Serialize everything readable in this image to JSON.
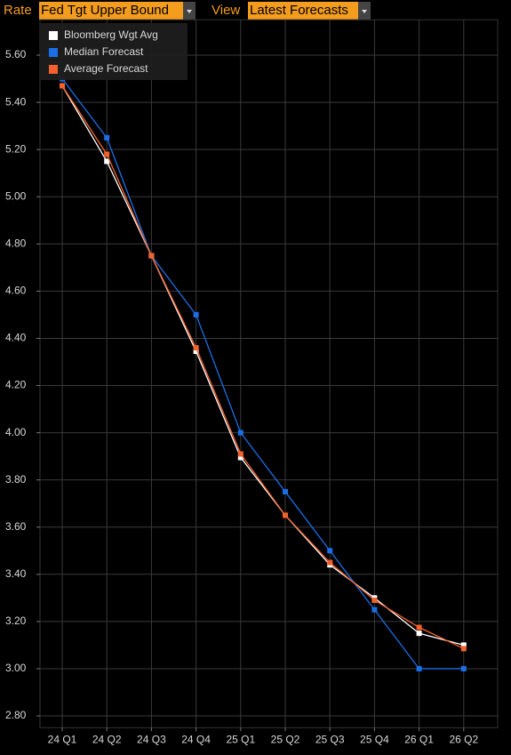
{
  "header": {
    "rate_label": "Rate",
    "rate_value": "Fed Tgt Upper Bound",
    "view_label": "View",
    "view_value": "Latest Forecasts"
  },
  "chart_data": {
    "type": "line",
    "categories": [
      "24 Q1",
      "24 Q2",
      "24 Q3",
      "24 Q4",
      "25 Q1",
      "25 Q2",
      "25 Q3",
      "25 Q4",
      "26 Q1",
      "26 Q2"
    ],
    "series": [
      {
        "name": "Bloomberg Wgt Avg",
        "color": "#ffffff",
        "values": [
          5.47,
          5.15,
          4.75,
          4.345,
          3.895,
          3.65,
          3.44,
          3.3,
          3.15,
          3.1
        ]
      },
      {
        "name": "Median Forecast",
        "color": "#1a6fe6",
        "values": [
          5.5,
          5.25,
          4.75,
          4.5,
          4.0,
          3.75,
          3.5,
          3.25,
          3.0,
          3.0
        ]
      },
      {
        "name": "Average Forecast",
        "color": "#f4612c",
        "values": [
          5.47,
          5.18,
          4.75,
          4.36,
          3.91,
          3.65,
          3.45,
          3.29,
          3.175,
          3.085
        ]
      }
    ],
    "ylim": [
      2.75,
      5.75
    ],
    "yticks": [
      {
        "value": 2.8,
        "label": "2.80"
      },
      {
        "value": 3,
        "label": "3.00"
      },
      {
        "value": 3.2,
        "label": "3.20"
      },
      {
        "value": 3.4,
        "label": "3.40"
      },
      {
        "value": 3.6,
        "label": "3.60"
      },
      {
        "value": 3.8,
        "label": "3.80"
      },
      {
        "value": 4,
        "label": "4.00"
      },
      {
        "value": 4.2,
        "label": "4.20"
      },
      {
        "value": 4.4,
        "label": "4.40"
      },
      {
        "value": 4.6,
        "label": "4.60"
      },
      {
        "value": 4.8,
        "label": "4.80"
      },
      {
        "value": 5,
        "label": "5.00"
      },
      {
        "value": 5.2,
        "label": "5.20"
      },
      {
        "value": 5.4,
        "label": "5.40"
      },
      {
        "value": 5.6,
        "label": "5.60"
      }
    ],
    "grid": true,
    "legend": "top-left"
  }
}
